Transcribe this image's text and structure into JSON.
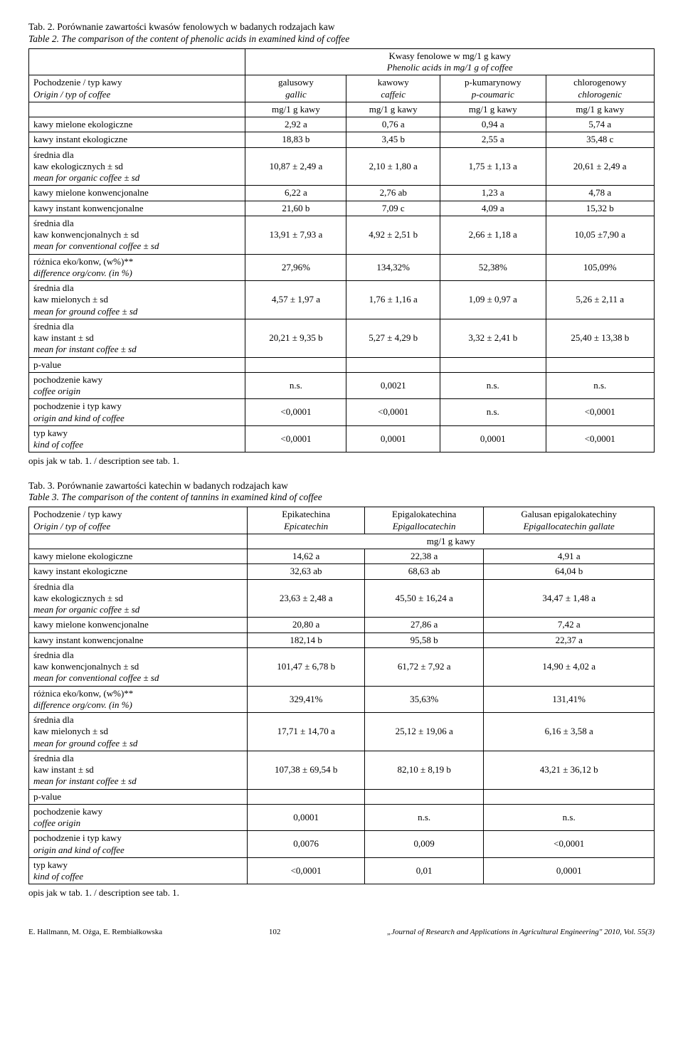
{
  "tab2": {
    "titles": [
      "Tab. 2. Porównanie zawartości kwasów fenolowych w badanych rodzajach kaw",
      "Table 2. The comparison of the content of phenolic acids in examined kind of coffee"
    ],
    "superheader": [
      "Kwasy fenolowe w mg/1 g kawy",
      "Phenolic acids in mg/1 g of coffee"
    ],
    "col0": [
      "Pochodzenie / typ kawy",
      "Origin / typ of coffee"
    ],
    "cols": [
      [
        "galusowy",
        "gallic"
      ],
      [
        "kawowy",
        "caffeic"
      ],
      [
        "p-kumarynowy",
        "p-coumaric"
      ],
      [
        "chlorogenowy",
        "chlorogenic"
      ]
    ],
    "unit": "mg/1 g kawy",
    "rows": [
      {
        "l": [
          "kawy mielone ekologiczne"
        ],
        "v": [
          "2,92 a",
          "0,76 a",
          "0,94 a",
          "5,74 a"
        ]
      },
      {
        "l": [
          "kawy instant ekologiczne"
        ],
        "v": [
          "18,83 b",
          "3,45 b",
          "2,55 a",
          "35,48 c"
        ]
      },
      {
        "l": [
          "średnia dla",
          "kaw ekologicznych ± sd",
          "mean for organic coffee ± sd"
        ],
        "it": [
          false,
          false,
          true
        ],
        "v": [
          "10,87 ± 2,49 a",
          "2,10 ± 1,80 a",
          "1,75 ± 1,13 a",
          "20,61 ± 2,49 a"
        ]
      },
      {
        "l": [
          "kawy mielone konwencjonalne"
        ],
        "v": [
          "6,22 a",
          "2,76 ab",
          "1,23 a",
          "4,78 a"
        ]
      },
      {
        "l": [
          "kawy instant konwencjonalne"
        ],
        "v": [
          "21,60 b",
          "7,09 c",
          "4,09 a",
          "15,32 b"
        ]
      },
      {
        "l": [
          "średnia dla",
          "kaw konwencjonalnych ± sd",
          "mean for conventional coffee ± sd"
        ],
        "it": [
          false,
          false,
          true
        ],
        "v": [
          "13,91 ± 7,93 a",
          "4,92 ± 2,51 b",
          "2,66 ± 1,18 a",
          "10,05 ±7,90 a"
        ]
      },
      {
        "l": [
          "różnica eko/konw, (w%)**",
          "difference org/conv. (in %)"
        ],
        "it": [
          false,
          true
        ],
        "v": [
          "27,96%",
          "134,32%",
          "52,38%",
          "105,09%"
        ]
      },
      {
        "l": [
          "średnia dla",
          "kaw mielonych ± sd",
          "mean for ground coffee ± sd"
        ],
        "it": [
          false,
          false,
          true
        ],
        "v": [
          "4,57 ± 1,97 a",
          "1,76 ± 1,16 a",
          "1,09 ± 0,97 a",
          "5,26 ± 2,11 a"
        ]
      },
      {
        "l": [
          "średnia dla",
          "kaw instant ± sd",
          "mean for instant coffee ± sd"
        ],
        "it": [
          false,
          false,
          true
        ],
        "v": [
          "20,21 ± 9,35 b",
          "5,27 ± 4,29 b",
          "3,32 ± 2,41 b",
          "25,40 ± 13,38 b"
        ]
      },
      {
        "l": [
          "p-value"
        ],
        "v": [
          "",
          "",
          "",
          ""
        ]
      },
      {
        "l": [
          "pochodzenie kawy",
          "coffee origin"
        ],
        "it": [
          false,
          true
        ],
        "v": [
          "n.s.",
          "0,0021",
          "n.s.",
          "n.s."
        ]
      },
      {
        "l": [
          "pochodzenie i typ kawy",
          "origin and kind of coffee"
        ],
        "it": [
          false,
          true
        ],
        "v": [
          "<0,0001",
          "<0,0001",
          "n.s.",
          "<0,0001"
        ]
      },
      {
        "l": [
          "typ kawy",
          "kind of coffee"
        ],
        "it": [
          false,
          true
        ],
        "v": [
          "<0,0001",
          "0,0001",
          "0,0001",
          "<0,0001"
        ]
      }
    ],
    "note": "opis jak w tab. 1. / description see tab. 1."
  },
  "tab3": {
    "titles": [
      "Tab. 3. Porównanie zawartości katechin w badanych rodzajach kaw",
      "Table 3. The comparison of the content of tannins in examined kind of coffee"
    ],
    "col0": [
      "Pochodzenie / typ kawy",
      "Origin / typ of coffee"
    ],
    "cols": [
      [
        "Epikatechina",
        "Epicatechin"
      ],
      [
        "Epigalokatechina",
        "Epigallocatechin"
      ],
      [
        "Galusan epigalokatechiny",
        "Epigallocatechin gallate"
      ]
    ],
    "unit": "mg/1 g kawy",
    "rows": [
      {
        "l": [
          "kawy mielone ekologiczne"
        ],
        "v": [
          "14,62 a",
          "22,38 a",
          "4,91 a"
        ]
      },
      {
        "l": [
          "kawy instant ekologiczne"
        ],
        "v": [
          "32,63 ab",
          "68,63 ab",
          "64,04 b"
        ]
      },
      {
        "l": [
          "średnia dla",
          "kaw ekologicznych ± sd",
          "mean for organic coffee ± sd"
        ],
        "it": [
          false,
          false,
          true
        ],
        "v": [
          "23,63 ± 2,48 a",
          "45,50 ± 16,24 a",
          "34,47 ± 1,48 a"
        ]
      },
      {
        "l": [
          "kawy mielone konwencjonalne"
        ],
        "v": [
          "20,80 a",
          "27,86 a",
          "7,42 a"
        ]
      },
      {
        "l": [
          "kawy instant konwencjonalne"
        ],
        "v": [
          "182,14 b",
          "95,58 b",
          "22,37 a"
        ]
      },
      {
        "l": [
          "średnia dla",
          "kaw konwencjonalnych ± sd",
          "mean for conventional coffee ± sd"
        ],
        "it": [
          false,
          false,
          true
        ],
        "v": [
          "101,47 ± 6,78 b",
          "61,72 ± 7,92 a",
          "14,90 ± 4,02 a"
        ]
      },
      {
        "l": [
          "różnica eko/konw, (w%)**",
          "difference org/conv. (in %)"
        ],
        "it": [
          false,
          true
        ],
        "v": [
          "329,41%",
          "35,63%",
          "131,41%"
        ]
      },
      {
        "l": [
          "średnia dla",
          "kaw mielonych ± sd",
          "mean for ground coffee ± sd"
        ],
        "it": [
          false,
          false,
          true
        ],
        "v": [
          "17,71 ± 14,70 a",
          "25,12 ± 19,06 a",
          "6,16 ± 3,58 a"
        ]
      },
      {
        "l": [
          "średnia dla",
          "kaw instant ± sd",
          "mean for instant coffee ± sd"
        ],
        "it": [
          false,
          false,
          true
        ],
        "v": [
          "107,38 ± 69,54 b",
          "82,10 ± 8,19 b",
          "43,21 ± 36,12 b"
        ]
      },
      {
        "l": [
          "p-value"
        ],
        "v": [
          "",
          "",
          ""
        ]
      },
      {
        "l": [
          "pochodzenie kawy",
          "coffee origin"
        ],
        "it": [
          false,
          true
        ],
        "v": [
          "0,0001",
          "n.s.",
          "n.s."
        ]
      },
      {
        "l": [
          "pochodzenie i typ kawy",
          "origin and kind of coffee"
        ],
        "it": [
          false,
          true
        ],
        "v": [
          "0,0076",
          "0,009",
          "<0,0001"
        ]
      },
      {
        "l": [
          "typ kawy",
          "kind of coffee"
        ],
        "it": [
          false,
          true
        ],
        "v": [
          "<0,0001",
          "0,01",
          "0,0001"
        ]
      }
    ],
    "note": "opis jak w tab. 1. / description see tab. 1."
  },
  "footer": {
    "left": "E. Hallmann, M. Ożga, E. Rembiałkowska",
    "right": "„Journal of Research and Applications in Agricultural Engineering\" 2010, Vol. 55(3)",
    "page": "102"
  }
}
